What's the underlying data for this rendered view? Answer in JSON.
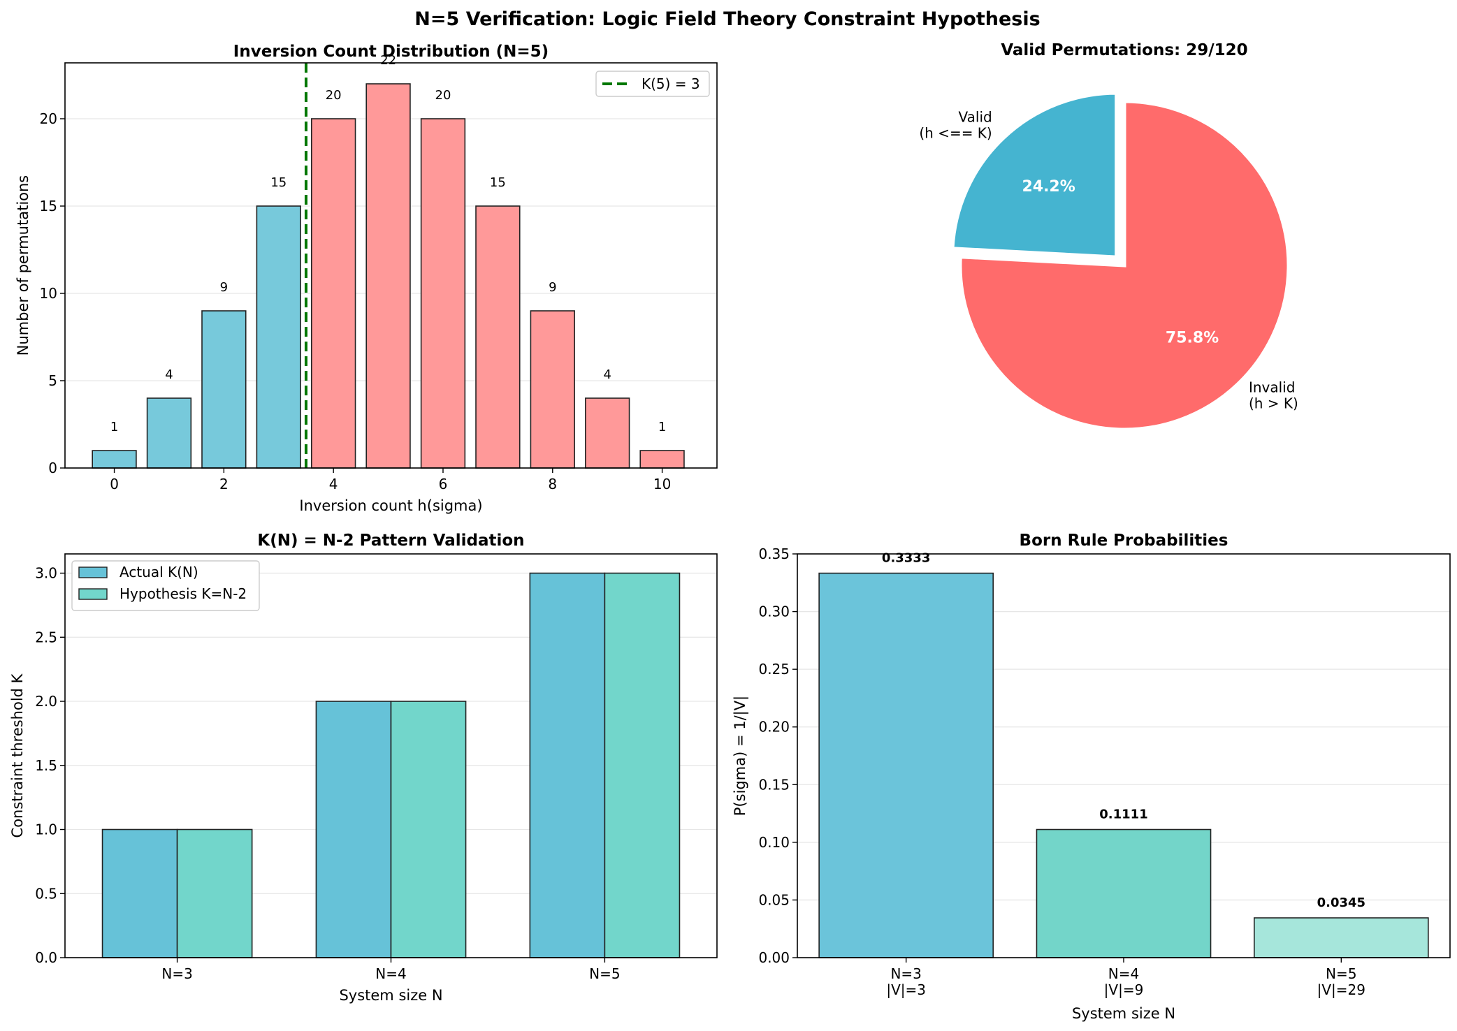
{
  "suptitle": "N=5 Verification: Logic Field Theory Constraint Hypothesis",
  "colors": {
    "valid_bar": "#77C9DB",
    "invalid_bar": "#FF9999",
    "threshold_line": "#007700",
    "pie_valid": "#45B4D0",
    "pie_invalid": "#FF6B6B",
    "actual": "#66C2D8",
    "hypothesis": "#72D6CB",
    "born": [
      "#6BC4DA",
      "#73D5C9",
      "#A6E6DB"
    ],
    "edge": "#222222",
    "grid": "#e6e6e6"
  },
  "chart_data": [
    {
      "id": "histogram",
      "type": "bar",
      "title": "Inversion Count Distribution (N=5)",
      "xlabel": "Inversion count h(sigma)",
      "ylabel": "Number of permutations",
      "x": [
        0,
        1,
        2,
        3,
        4,
        5,
        6,
        7,
        8,
        9,
        10
      ],
      "values": [
        1,
        4,
        9,
        15,
        20,
        22,
        20,
        15,
        9,
        4,
        1
      ],
      "value_labels": [
        "1",
        "4",
        "9",
        "15",
        "20",
        "22",
        "20",
        "15",
        "9",
        "4",
        "1"
      ],
      "valid_max_x": 3,
      "threshold_x": 3.5,
      "threshold_label": "K(5) = 3",
      "xlim": [
        -0.9,
        11
      ],
      "ylim": [
        0,
        23.2
      ],
      "xticks": [
        0,
        2,
        4,
        6,
        8,
        10
      ],
      "yticks": [
        0,
        5,
        10,
        15,
        20
      ],
      "grid": "y",
      "legend": "top-right"
    },
    {
      "id": "pie",
      "type": "pie",
      "title": "Valid Permutations: 29/120",
      "slices": [
        {
          "label": "Valid\n(h <== K)",
          "value": 29,
          "pct": "24.2%",
          "explode": true
        },
        {
          "label": "Invalid\n(h > K)",
          "value": 91,
          "pct": "75.8%",
          "explode": false
        }
      ]
    },
    {
      "id": "kpattern",
      "type": "bar",
      "title": "K(N) = N-2 Pattern Validation",
      "xlabel": "System size N",
      "ylabel": "Constraint threshold K",
      "categories": [
        "N=3",
        "N=4",
        "N=5"
      ],
      "series": [
        {
          "name": "Actual K(N)",
          "values": [
            1,
            2,
            3
          ]
        },
        {
          "name": "Hypothesis K=N-2",
          "values": [
            1,
            2,
            3
          ]
        }
      ],
      "ylim": [
        0,
        3.15
      ],
      "yticks": [
        "0.0",
        "0.5",
        "1.0",
        "1.5",
        "2.0",
        "2.5",
        "3.0"
      ],
      "grid": "y",
      "legend": "top-left"
    },
    {
      "id": "born",
      "type": "bar",
      "title": "Born Rule Probabilities",
      "xlabel": "System size N",
      "ylabel": "P(sigma) = 1/|V|",
      "categories": [
        [
          "N=3",
          "|V|=3"
        ],
        [
          "N=4",
          "|V|=9"
        ],
        [
          "N=5",
          "|V|=29"
        ]
      ],
      "values": [
        0.3333,
        0.1111,
        0.0345
      ],
      "value_labels": [
        "0.3333",
        "0.1111",
        "0.0345"
      ],
      "ylim": [
        0,
        0.35
      ],
      "yticks": [
        "0.00",
        "0.05",
        "0.10",
        "0.15",
        "0.20",
        "0.25",
        "0.30",
        "0.35"
      ],
      "grid": "y"
    }
  ]
}
